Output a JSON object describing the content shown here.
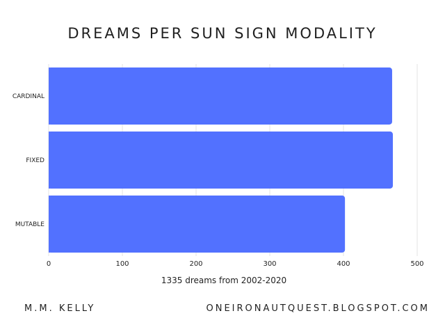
{
  "chart_data": {
    "type": "bar",
    "orientation": "horizontal",
    "title": "DREAMS PER SUN SIGN MODALITY",
    "categories": [
      "CARDINAL",
      "FIXED",
      "MUTABLE"
    ],
    "values": [
      466,
      467,
      402
    ],
    "xlabel": "1335 dreams from 2002-2020",
    "ylabel": "",
    "xlim": [
      0,
      500
    ],
    "xticks": [
      0,
      100,
      200,
      300,
      400,
      500
    ],
    "grid": true,
    "bar_color": "#5271ff"
  },
  "footer": {
    "author": "M.M. KELLY",
    "site": "ONEIRONAUTQUEST.BLOGSPOT.COM"
  }
}
